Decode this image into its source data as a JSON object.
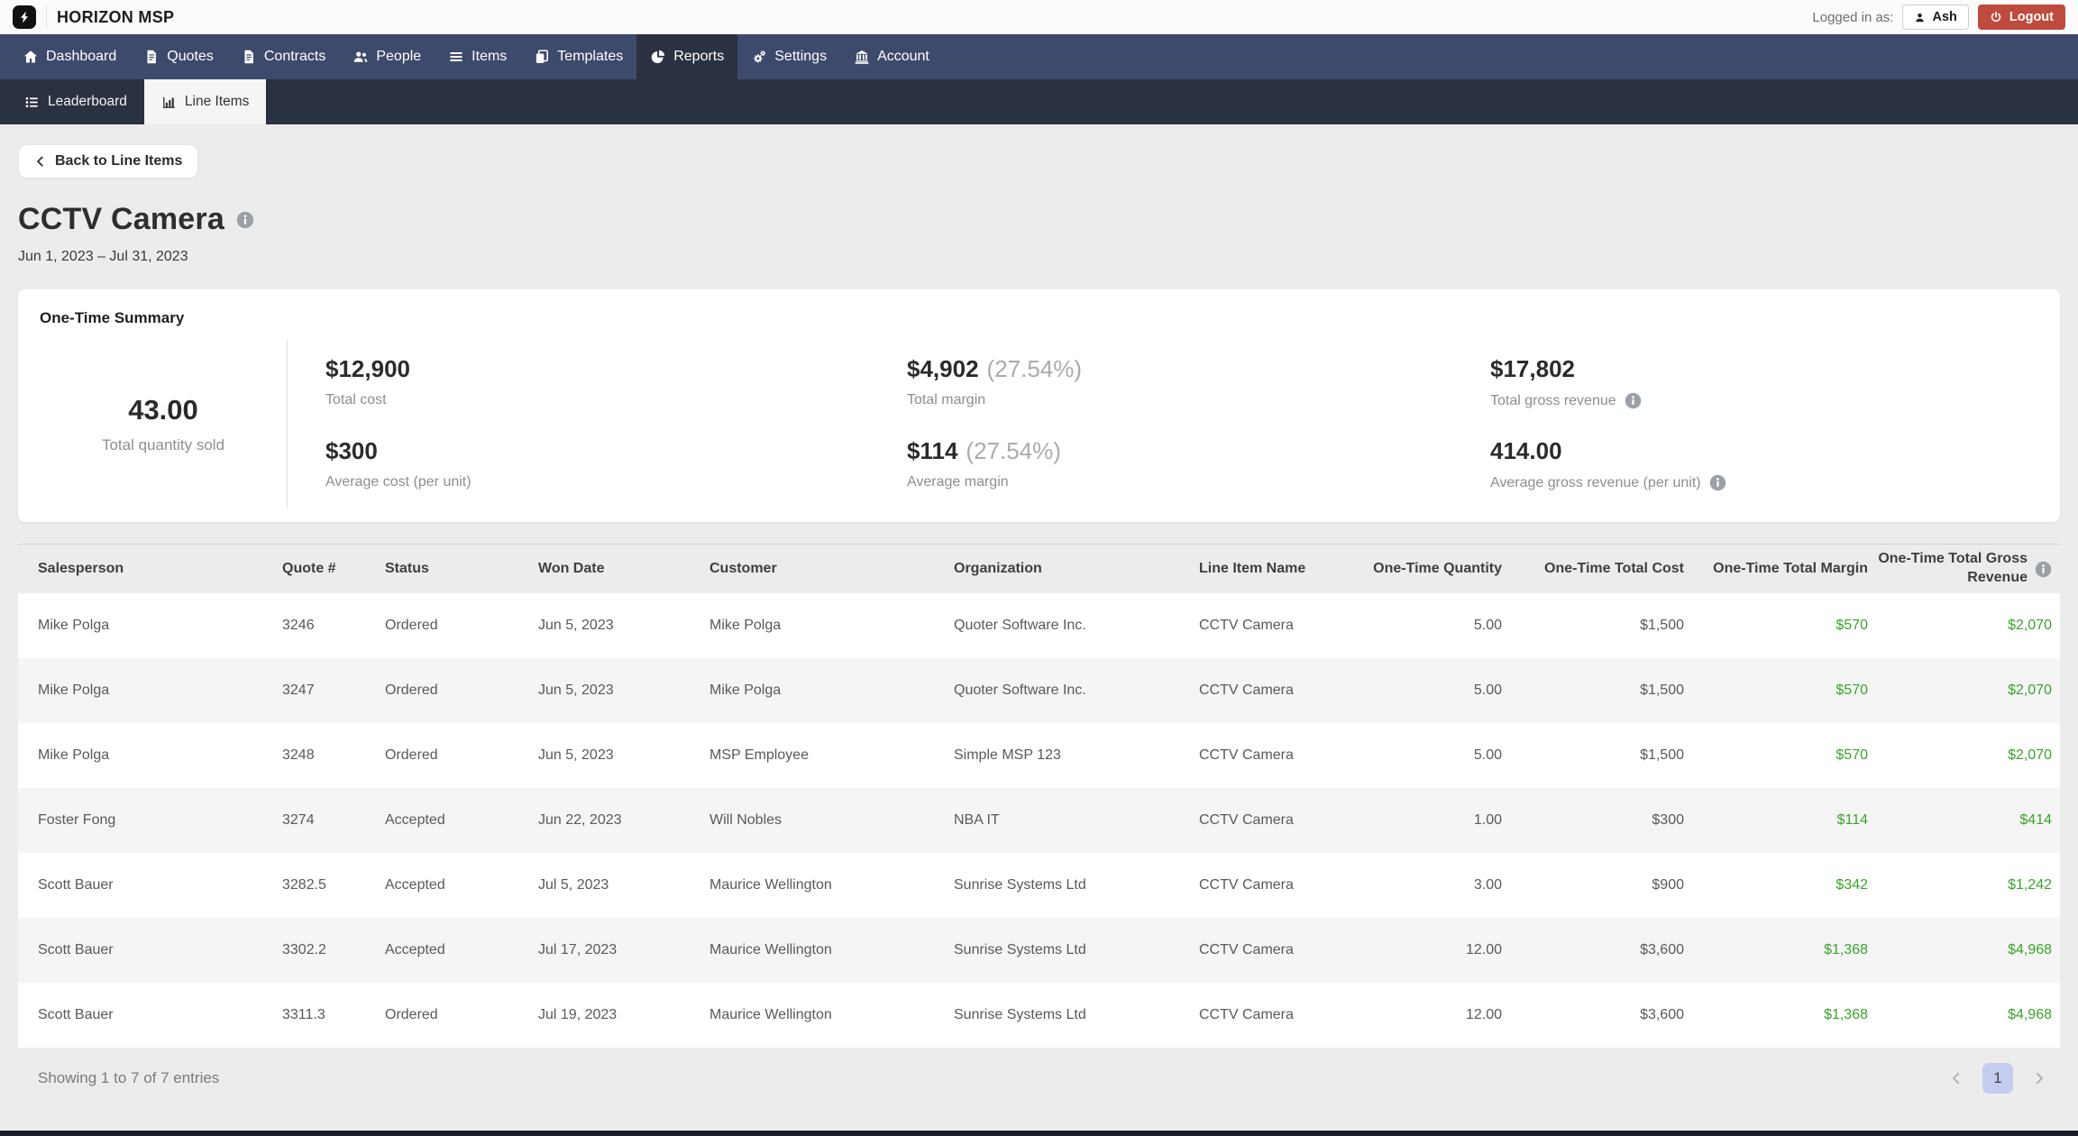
{
  "colors": {
    "nav_bg": "#3e4a6b",
    "subnav_bg": "#2a3140",
    "accent_green": "#3aa32b",
    "logout_red": "#bf4a3e",
    "page_bg": "#ececec",
    "active_tab_bg": "#f5f5f5",
    "pagination_active_bg": "#c4cdf0"
  },
  "topbar": {
    "brand": "HORIZON MSP",
    "logged_in_label": "Logged in as:",
    "user_button": "Ash",
    "logout_button": "Logout"
  },
  "nav": {
    "items": [
      {
        "label": "Dashboard",
        "icon": "home-icon",
        "active": false
      },
      {
        "label": "Quotes",
        "icon": "document-icon",
        "active": false
      },
      {
        "label": "Contracts",
        "icon": "document-icon",
        "active": false
      },
      {
        "label": "People",
        "icon": "people-icon",
        "active": false
      },
      {
        "label": "Items",
        "icon": "list-icon",
        "active": false
      },
      {
        "label": "Templates",
        "icon": "copy-icon",
        "active": false
      },
      {
        "label": "Reports",
        "icon": "pie-chart-icon",
        "active": true
      },
      {
        "label": "Settings",
        "icon": "gears-icon",
        "active": false
      },
      {
        "label": "Account",
        "icon": "bank-icon",
        "active": false
      }
    ]
  },
  "subnav": {
    "tabs": [
      {
        "label": "Leaderboard",
        "icon": "list-ul-icon",
        "active": false
      },
      {
        "label": "Line Items",
        "icon": "bar-chart-icon",
        "active": true
      }
    ]
  },
  "page": {
    "back_button": "Back to Line Items",
    "title": "CCTV Camera",
    "date_range": "Jun 1, 2023 – Jul 31, 2023"
  },
  "summary": {
    "title": "One-Time Summary",
    "quantity": {
      "value": "43.00",
      "label": "Total quantity sold"
    },
    "stats": [
      {
        "value": "$12,900",
        "percent": "",
        "label": "Total cost",
        "info": false
      },
      {
        "value": "$300",
        "percent": "",
        "label": "Average cost (per unit)",
        "info": false
      },
      {
        "value": "$4,902",
        "percent": "(27.54%)",
        "label": "Total margin",
        "info": false
      },
      {
        "value": "$114",
        "percent": "(27.54%)",
        "label": "Average margin",
        "info": false
      },
      {
        "value": "$17,802",
        "percent": "",
        "label": "Total gross revenue",
        "info": true
      },
      {
        "value": "414.00",
        "percent": "",
        "label": "Average gross revenue (per unit)",
        "info": true
      }
    ]
  },
  "table": {
    "columns": [
      {
        "key": "salesperson",
        "label": "Salesperson",
        "align": "left",
        "info": false
      },
      {
        "key": "quote-number",
        "label": "Quote #",
        "align": "left",
        "info": false
      },
      {
        "key": "status",
        "label": "Status",
        "align": "left",
        "info": false
      },
      {
        "key": "won-date",
        "label": "Won Date",
        "align": "left",
        "info": false
      },
      {
        "key": "customer",
        "label": "Customer",
        "align": "left",
        "info": false
      },
      {
        "key": "organization",
        "label": "Organization",
        "align": "left",
        "info": false
      },
      {
        "key": "line-item-name",
        "label": "Line Item Name",
        "align": "left",
        "info": false
      },
      {
        "key": "one-time-quantity",
        "label": "One-Time Quantity",
        "align": "right",
        "info": false
      },
      {
        "key": "one-time-total-cost",
        "label": "One-Time Total Cost",
        "align": "right",
        "info": false
      },
      {
        "key": "one-time-total-margin",
        "label": "One-Time Total Margin",
        "align": "right",
        "info": false
      },
      {
        "key": "one-time-total-gross-revenue",
        "label": "One-Time Total Gross Revenue",
        "align": "right",
        "info": true
      }
    ],
    "green_columns": [
      9,
      10
    ],
    "rows": [
      [
        "Mike Polga",
        "3246",
        "Ordered",
        "Jun 5, 2023",
        "Mike Polga",
        "Quoter Software Inc.",
        "CCTV Camera",
        "5.00",
        "$1,500",
        "$570",
        "$2,070"
      ],
      [
        "Mike Polga",
        "3247",
        "Ordered",
        "Jun 5, 2023",
        "Mike Polga",
        "Quoter Software Inc.",
        "CCTV Camera",
        "5.00",
        "$1,500",
        "$570",
        "$2,070"
      ],
      [
        "Mike Polga",
        "3248",
        "Ordered",
        "Jun 5, 2023",
        "MSP Employee",
        "Simple MSP 123",
        "CCTV Camera",
        "5.00",
        "$1,500",
        "$570",
        "$2,070"
      ],
      [
        "Foster Fong",
        "3274",
        "Accepted",
        "Jun 22, 2023",
        "Will Nobles",
        "NBA IT",
        "CCTV Camera",
        "1.00",
        "$300",
        "$114",
        "$414"
      ],
      [
        "Scott Bauer",
        "3282.5",
        "Accepted",
        "Jul 5, 2023",
        "Maurice Wellington",
        "Sunrise Systems Ltd",
        "CCTV Camera",
        "3.00",
        "$900",
        "$342",
        "$1,242"
      ],
      [
        "Scott Bauer",
        "3302.2",
        "Accepted",
        "Jul 17, 2023",
        "Maurice Wellington",
        "Sunrise Systems Ltd",
        "CCTV Camera",
        "12.00",
        "$3,600",
        "$1,368",
        "$4,968"
      ],
      [
        "Scott Bauer",
        "3311.3",
        "Ordered",
        "Jul 19, 2023",
        "Maurice Wellington",
        "Sunrise Systems Ltd",
        "CCTV Camera",
        "12.00",
        "$3,600",
        "$1,368",
        "$4,968"
      ]
    ],
    "footer": {
      "showing": "Showing 1 to 7 of 7 entries",
      "page": "1"
    }
  }
}
